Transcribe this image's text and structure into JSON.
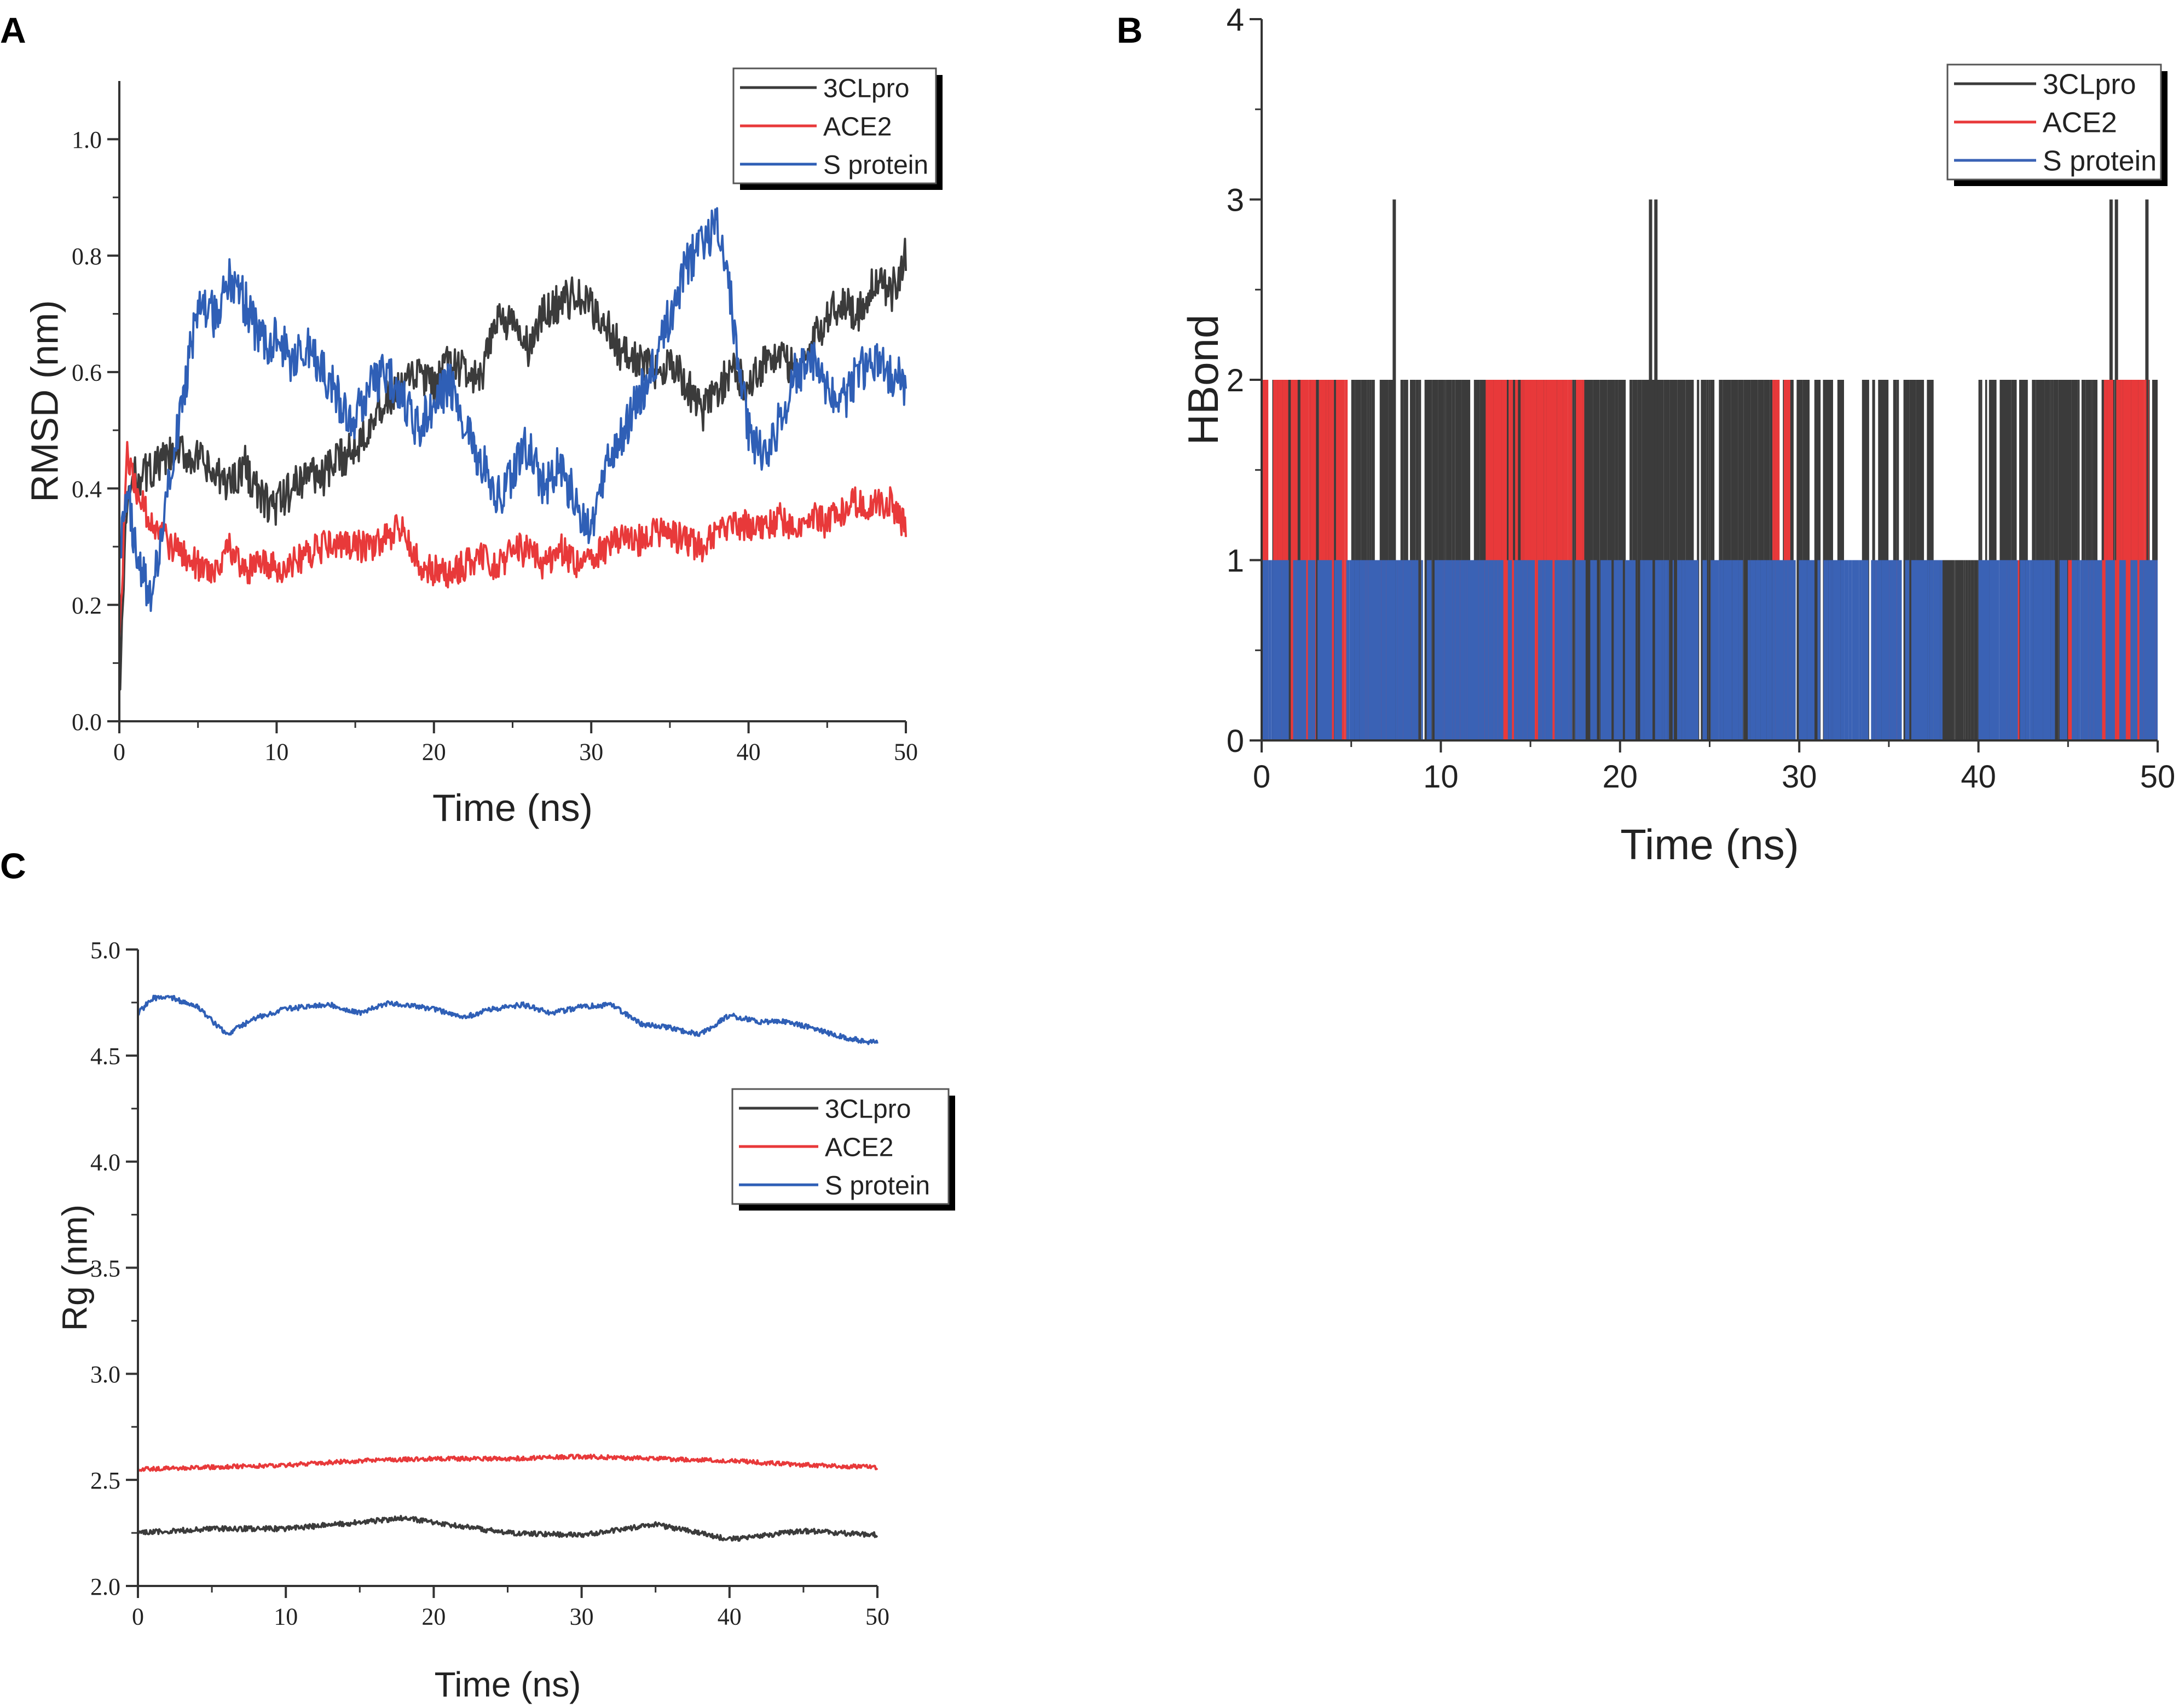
{
  "chart_data": [
    {
      "panel_label": "A",
      "type": "line",
      "title": "",
      "xlabel": "Time (ns)",
      "ylabel": "RMSD (nm)",
      "xlim": [
        0,
        50
      ],
      "ylim": [
        0,
        1.1
      ],
      "xticks": [
        0,
        10,
        20,
        30,
        40,
        50
      ],
      "yticks": [
        0.0,
        0.2,
        0.4,
        0.6,
        0.8,
        1.0
      ],
      "xtick_labels": [
        "0",
        "10",
        "20",
        "30",
        "40",
        "50"
      ],
      "ytick_labels": [
        "0.0",
        "0.2",
        "0.4",
        "0.6",
        "0.8",
        "1.0"
      ],
      "legend": [
        "3CLpro",
        "ACE2",
        "S protein"
      ],
      "legend_position": "top-right",
      "grid": false,
      "series": [
        {
          "name": "3CLpro",
          "color": "#3b3b3b",
          "x": [
            0,
            0.5,
            1,
            2,
            3,
            4,
            5,
            6,
            7,
            8,
            9,
            10,
            11,
            12,
            13,
            14,
            15,
            16,
            17,
            18,
            19,
            20,
            21,
            22,
            23,
            24,
            25,
            26,
            27,
            28,
            29,
            30,
            31,
            32,
            33,
            34,
            35,
            36,
            37,
            38,
            39,
            40,
            41,
            42,
            43,
            44,
            45,
            46,
            47,
            48,
            49,
            50
          ],
          "values": [
            0.05,
            0.38,
            0.42,
            0.43,
            0.45,
            0.46,
            0.45,
            0.42,
            0.41,
            0.44,
            0.38,
            0.37,
            0.4,
            0.43,
            0.42,
            0.45,
            0.47,
            0.52,
            0.55,
            0.57,
            0.6,
            0.57,
            0.62,
            0.6,
            0.58,
            0.7,
            0.68,
            0.64,
            0.7,
            0.72,
            0.73,
            0.71,
            0.68,
            0.63,
            0.62,
            0.6,
            0.62,
            0.58,
            0.53,
            0.57,
            0.6,
            0.58,
            0.62,
            0.63,
            0.6,
            0.64,
            0.7,
            0.72,
            0.7,
            0.76,
            0.73,
            0.8
          ],
          "noise": 0.035
        },
        {
          "name": "ACE2",
          "color": "#e8393a",
          "x": [
            0,
            0.5,
            1,
            2,
            3,
            4,
            5,
            6,
            7,
            8,
            9,
            10,
            11,
            12,
            13,
            14,
            15,
            16,
            17,
            18,
            19,
            20,
            21,
            22,
            23,
            24,
            25,
            26,
            27,
            28,
            29,
            30,
            31,
            32,
            33,
            34,
            35,
            36,
            37,
            38,
            39,
            40,
            41,
            42,
            43,
            44,
            45,
            46,
            47,
            48,
            49,
            50
          ],
          "values": [
            0.12,
            0.46,
            0.4,
            0.34,
            0.31,
            0.29,
            0.27,
            0.26,
            0.3,
            0.25,
            0.28,
            0.26,
            0.27,
            0.29,
            0.3,
            0.31,
            0.3,
            0.3,
            0.32,
            0.33,
            0.27,
            0.26,
            0.25,
            0.27,
            0.28,
            0.26,
            0.3,
            0.29,
            0.27,
            0.3,
            0.27,
            0.28,
            0.3,
            0.32,
            0.31,
            0.33,
            0.32,
            0.31,
            0.3,
            0.32,
            0.33,
            0.34,
            0.33,
            0.35,
            0.32,
            0.36,
            0.34,
            0.36,
            0.38,
            0.37,
            0.38,
            0.33
          ],
          "noise": 0.028
        },
        {
          "name": "S protein",
          "color": "#2f5fb6",
          "x": [
            0,
            0.5,
            1,
            2,
            3,
            4,
            5,
            6,
            7,
            8,
            9,
            10,
            11,
            12,
            13,
            14,
            15,
            16,
            17,
            18,
            19,
            20,
            21,
            22,
            23,
            24,
            25,
            26,
            27,
            28,
            29,
            30,
            31,
            32,
            33,
            34,
            35,
            36,
            37,
            38,
            39,
            40,
            41,
            42,
            43,
            44,
            45,
            46,
            47,
            48,
            49,
            50
          ],
          "values": [
            0.28,
            0.4,
            0.3,
            0.2,
            0.38,
            0.55,
            0.72,
            0.7,
            0.76,
            0.72,
            0.65,
            0.66,
            0.62,
            0.64,
            0.6,
            0.55,
            0.52,
            0.58,
            0.6,
            0.56,
            0.5,
            0.55,
            0.58,
            0.5,
            0.45,
            0.38,
            0.42,
            0.48,
            0.4,
            0.44,
            0.38,
            0.32,
            0.45,
            0.5,
            0.55,
            0.62,
            0.7,
            0.78,
            0.82,
            0.85,
            0.7,
            0.5,
            0.45,
            0.52,
            0.6,
            0.62,
            0.58,
            0.55,
            0.6,
            0.62,
            0.6,
            0.58
          ],
          "noise": 0.04
        }
      ]
    },
    {
      "panel_label": "B",
      "type": "bar",
      "title": "",
      "xlabel": "Time (ns)",
      "ylabel": "HBond",
      "xlim": [
        0,
        50
      ],
      "ylim": [
        0,
        4
      ],
      "xticks": [
        0,
        10,
        20,
        30,
        40,
        50
      ],
      "yticks": [
        0,
        1,
        2,
        3,
        4
      ],
      "xtick_labels": [
        "0",
        "10",
        "20",
        "30",
        "40",
        "50"
      ],
      "ytick_labels": [
        "0",
        "1",
        "2",
        "3",
        "4"
      ],
      "legend": [
        "3CLpro",
        "ACE2",
        "S protein"
      ],
      "legend_position": "top-right",
      "grid": false,
      "series": [
        {
          "name": "3CLpro",
          "color": "#3b3b3b",
          "segments": [
            {
              "from": 0,
              "to": 4.5,
              "level": 2
            },
            {
              "from": 5,
              "to": 14,
              "level": 2
            },
            {
              "from": 14,
              "to": 32.5,
              "level": 2
            },
            {
              "from": 33.5,
              "to": 37.5,
              "level": 2
            },
            {
              "from": 37.5,
              "to": 40,
              "level": 1
            },
            {
              "from": 40,
              "to": 50,
              "level": 2
            }
          ],
          "peaks": [
            {
              "x": 7.4,
              "level": 3
            },
            {
              "x": 21.7,
              "level": 3
            },
            {
              "x": 22.0,
              "level": 3
            },
            {
              "x": 47.4,
              "level": 3
            },
            {
              "x": 47.7,
              "level": 3
            },
            {
              "x": 49.4,
              "level": 3
            }
          ]
        },
        {
          "name": "ACE2",
          "color": "#e8393a",
          "segments": [
            {
              "from": 0,
              "to": 4.8,
              "level": 2
            },
            {
              "from": 5.5,
              "to": 8.5,
              "level": 1
            },
            {
              "from": 10,
              "to": 15,
              "level": 1
            },
            {
              "from": 12.5,
              "to": 18,
              "level": 2
            },
            {
              "from": 28.5,
              "to": 29.5,
              "level": 2
            },
            {
              "from": 34.2,
              "to": 35.5,
              "level": 1
            },
            {
              "from": 41.5,
              "to": 42.5,
              "level": 1
            },
            {
              "from": 45,
              "to": 50,
              "level": 1
            },
            {
              "from": 47,
              "to": 49.5,
              "level": 2
            }
          ]
        },
        {
          "name": "S protein",
          "color": "#3a62b5",
          "segments": [
            {
              "from": 0,
              "to": 38,
              "level": 1
            },
            {
              "from": 40,
              "to": 50,
              "level": 1
            }
          ]
        }
      ]
    },
    {
      "panel_label": "C",
      "type": "line",
      "title": "",
      "xlabel": "Time (ns)",
      "ylabel": "Rg (nm)",
      "xlim": [
        0,
        50
      ],
      "ylim": [
        2.0,
        5.0
      ],
      "xticks": [
        0,
        10,
        20,
        30,
        40,
        50
      ],
      "yticks": [
        2.0,
        2.5,
        3.0,
        3.5,
        4.0,
        4.5,
        5.0
      ],
      "xtick_labels": [
        "0",
        "10",
        "20",
        "30",
        "40",
        "50"
      ],
      "ytick_labels": [
        "2.0",
        "2.5",
        "3.0",
        "3.5",
        "4.0",
        "4.5",
        "5.0"
      ],
      "legend": [
        "3CLpro",
        "ACE2",
        "S protein"
      ],
      "legend_position": "center-right",
      "grid": false,
      "series": [
        {
          "name": "3CLpro",
          "color": "#3b3b3b",
          "x": [
            0,
            5,
            10,
            15,
            18,
            20,
            25,
            30,
            35,
            40,
            45,
            50
          ],
          "values": [
            2.25,
            2.27,
            2.27,
            2.3,
            2.32,
            2.3,
            2.25,
            2.24,
            2.29,
            2.22,
            2.26,
            2.24
          ],
          "noise": 0.012
        },
        {
          "name": "ACE2",
          "color": "#e8393a",
          "x": [
            0,
            5,
            10,
            15,
            20,
            25,
            30,
            35,
            40,
            45,
            50
          ],
          "values": [
            2.55,
            2.56,
            2.57,
            2.59,
            2.6,
            2.6,
            2.61,
            2.6,
            2.59,
            2.57,
            2.56
          ],
          "noise": 0.01
        },
        {
          "name": "S protein",
          "color": "#2f5fb6",
          "x": [
            0,
            1,
            2,
            4,
            6,
            8,
            10,
            13,
            15,
            17,
            20,
            22,
            24,
            26,
            28,
            30,
            32,
            34,
            36,
            38,
            40,
            42,
            44,
            46,
            48,
            50
          ],
          "values": [
            4.7,
            4.77,
            4.78,
            4.73,
            4.6,
            4.68,
            4.72,
            4.74,
            4.7,
            4.75,
            4.72,
            4.68,
            4.72,
            4.74,
            4.7,
            4.73,
            4.74,
            4.65,
            4.63,
            4.6,
            4.69,
            4.66,
            4.66,
            4.62,
            4.58,
            4.56
          ],
          "noise": 0.012
        }
      ]
    }
  ]
}
